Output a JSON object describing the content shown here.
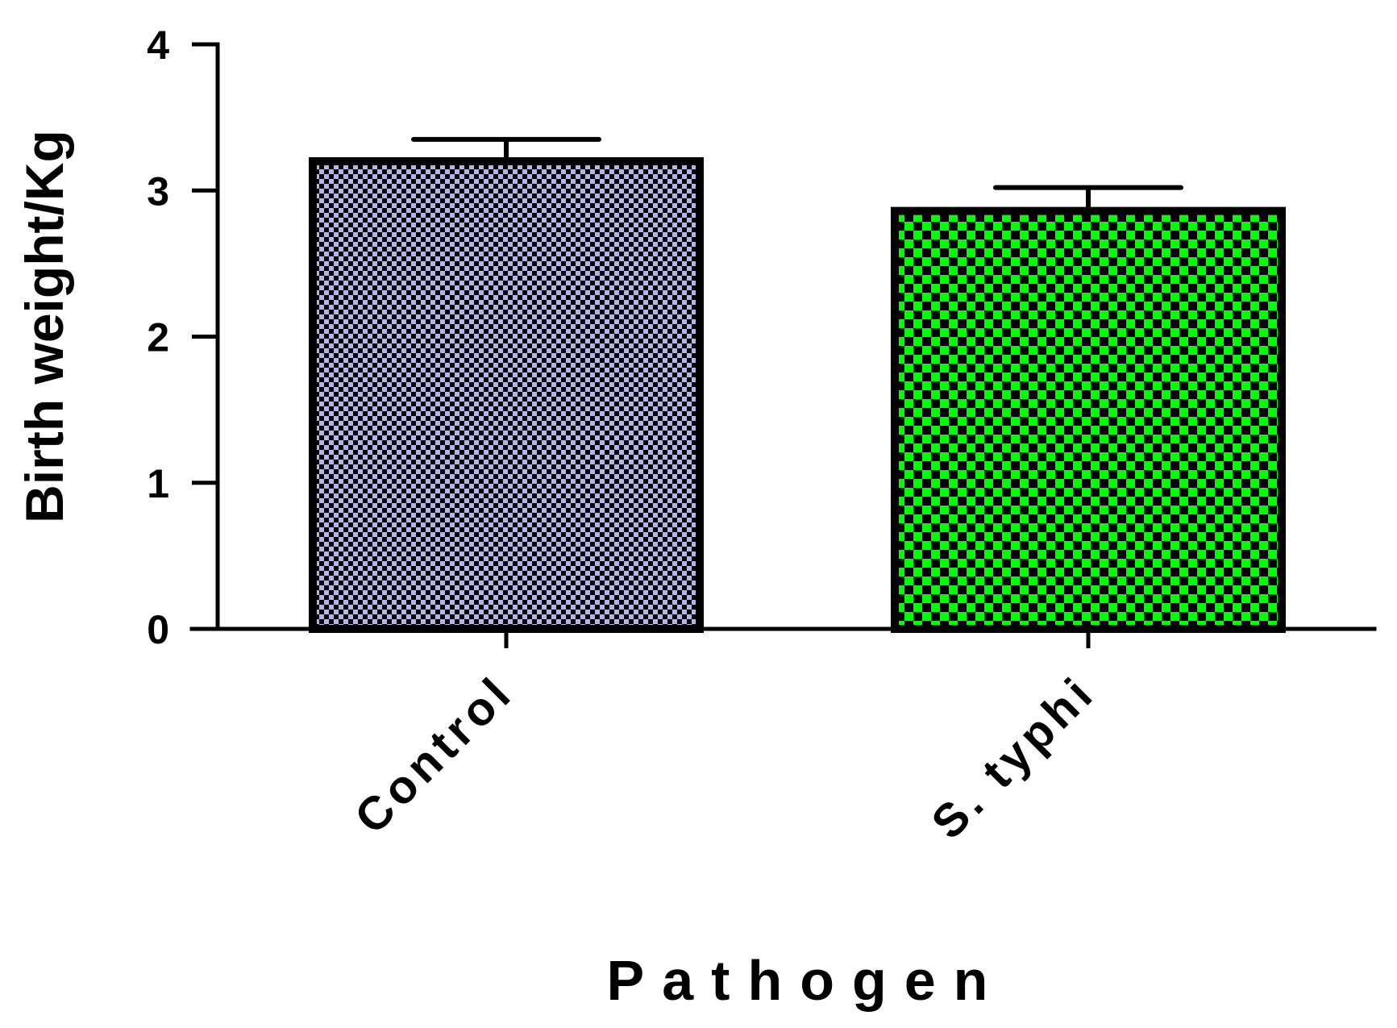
{
  "chart_data": {
    "type": "bar",
    "categories": [
      "Control",
      "S. typhi"
    ],
    "values": [
      3.2,
      2.86
    ],
    "errors": [
      0.15,
      0.16
    ],
    "colors": {
      "Control": {
        "base": "#b4b4e8",
        "pattern": "#000000"
      },
      "S. typhi": {
        "base": "#00ff00",
        "pattern": "#000000"
      }
    },
    "title": "",
    "xlabel": "Pathogen",
    "ylabel": "Birth weight/Kg",
    "ylim": [
      0,
      4
    ],
    "yticks": [
      0,
      1,
      2,
      3,
      4
    ],
    "grid": false,
    "legend": "none"
  }
}
